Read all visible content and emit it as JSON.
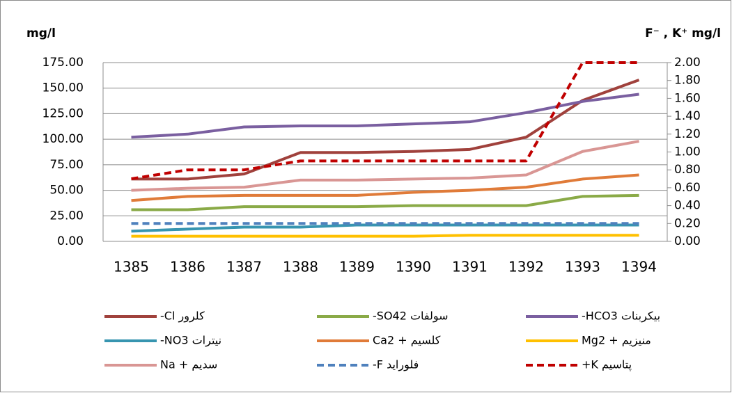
{
  "chart_data": {
    "type": "line",
    "ylabel": "mg/l",
    "y2label": "F⁻ , K⁺ mg/l",
    "categories": [
      "1385",
      "1386",
      "1387",
      "1388",
      "1389",
      "1390",
      "1391",
      "1392",
      "1393",
      "1394"
    ],
    "ylim": [
      0,
      175
    ],
    "yticks": [
      {
        "value": 0,
        "label": "0.00"
      },
      {
        "value": 25,
        "label": "25.00"
      },
      {
        "value": 50,
        "label": "50.00"
      },
      {
        "value": 75,
        "label": "75.00"
      },
      {
        "value": 100,
        "label": "100.00"
      },
      {
        "value": 125,
        "label": "125.00"
      },
      {
        "value": 150,
        "label": "150.00"
      },
      {
        "value": 175,
        "label": "175.00"
      }
    ],
    "y2lim": [
      0,
      2
    ],
    "y2ticks": [
      {
        "value": 0,
        "label": "0.00"
      },
      {
        "value": 0.2,
        "label": "0.20"
      },
      {
        "value": 0.4,
        "label": "0.40"
      },
      {
        "value": 0.6,
        "label": "0.60"
      },
      {
        "value": 0.8,
        "label": "0.80"
      },
      {
        "value": 1,
        "label": "1.00"
      },
      {
        "value": 1.2,
        "label": "1.20"
      },
      {
        "value": 1.4,
        "label": "1.40"
      },
      {
        "value": 1.6,
        "label": "1.60"
      },
      {
        "value": 1.8,
        "label": "1.80"
      },
      {
        "value": 2,
        "label": "2.00"
      }
    ],
    "grid": true,
    "legend": "bottom",
    "series": [
      {
        "name": "کلرور Cl-",
        "color": "#a0413c",
        "values": [
          61,
          61,
          66,
          87,
          87,
          88,
          90,
          102,
          138,
          158
        ]
      },
      {
        "name": "سولفات SO42-",
        "color": "#8aaa47",
        "values": [
          31,
          31,
          34,
          34,
          34,
          35,
          35,
          35,
          44,
          45
        ]
      },
      {
        "name": "بیکربنات HCO3-",
        "color": "#7a5fa0",
        "values": [
          102,
          105,
          112,
          113,
          113,
          115,
          117,
          126,
          137,
          144
        ]
      },
      {
        "name": "نیترات NO3-",
        "color": "#3795b0",
        "values": [
          10,
          12,
          14,
          14,
          16,
          16,
          16,
          16,
          16,
          16
        ]
      },
      {
        "name": "کلسیم + Ca2",
        "color": "#e07b39",
        "values": [
          40,
          44,
          45,
          45,
          45,
          48,
          50,
          53,
          61,
          65
        ]
      },
      {
        "name": "منیزیم + Mg2",
        "color": "#ffc000",
        "values": [
          5,
          5,
          5,
          5,
          5,
          5,
          6,
          6,
          6,
          6
        ]
      },
      {
        "name": "سدیم + Na",
        "color": "#d99694",
        "values": [
          50,
          52,
          53,
          60,
          60,
          61,
          62,
          65,
          88,
          98
        ]
      },
      {
        "name": "فلوراید F-",
        "color": "#4f81bd",
        "dash": true,
        "axis": "y2",
        "values": [
          0.2,
          0.2,
          0.2,
          0.2,
          0.2,
          0.2,
          0.2,
          0.2,
          0.2,
          0.2
        ]
      },
      {
        "name": "پتاسیم K+",
        "color": "#c00000",
        "dash": true,
        "axis": "y2",
        "values": [
          0.7,
          0.8,
          0.8,
          0.9,
          0.9,
          0.9,
          0.9,
          0.9,
          2,
          2
        ]
      }
    ]
  }
}
